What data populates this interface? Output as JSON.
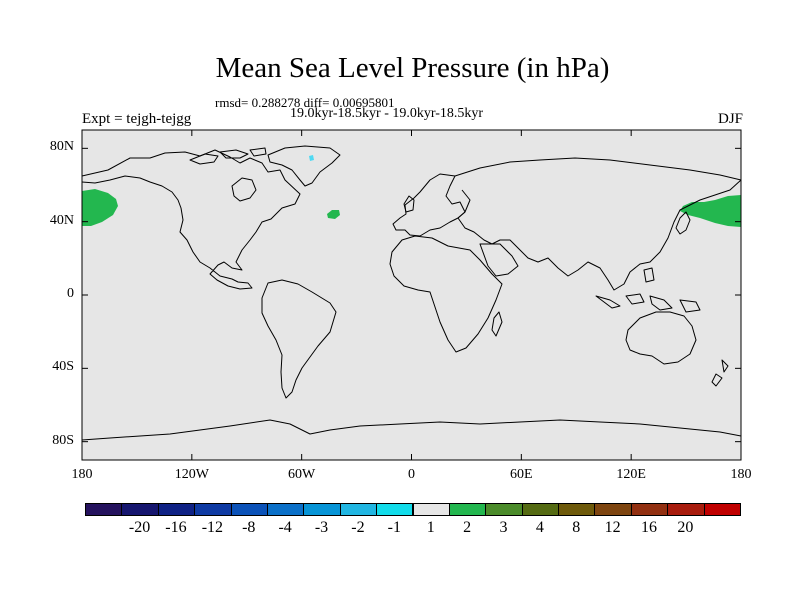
{
  "title": "Mean Sea Level Pressure (in hPa)",
  "stats": "rmsd= 0.288278 diff= 0.00695801",
  "period": "19.0kyr-18.5kyr - 19.0kyr-18.5kyr",
  "experiment": "Expt = tejgh-tejgg",
  "season": "DJF",
  "map": {
    "background_color": "#e6e6e6",
    "positive_color": "#23b74f",
    "negative_color": "#4fd9f2",
    "lat_labels": [
      {
        "lat": 80,
        "text": "80N"
      },
      {
        "lat": 40,
        "text": "40N"
      },
      {
        "lat": 0,
        "text": "0"
      },
      {
        "lat": -40,
        "text": "40S"
      },
      {
        "lat": -80,
        "text": "80S"
      }
    ],
    "lon_labels": [
      {
        "lon": -180,
        "text": "180"
      },
      {
        "lon": -120,
        "text": "120W"
      },
      {
        "lon": -60,
        "text": "60W"
      },
      {
        "lon": 0,
        "text": "0"
      },
      {
        "lon": 60,
        "text": "60E"
      },
      {
        "lon": 120,
        "text": "120E"
      },
      {
        "lon": 180,
        "text": "180"
      }
    ],
    "anomaly_regions": [
      {
        "name": "north-pacific-west-edge",
        "sign": "positive"
      },
      {
        "name": "north-atlantic-patch",
        "sign": "positive"
      },
      {
        "name": "north-pacific-east-edge",
        "sign": "positive"
      },
      {
        "name": "greenland-speck",
        "sign": "negative"
      }
    ]
  },
  "colorbar": {
    "labels": [
      "-20",
      "-16",
      "-12",
      "-8",
      "-4",
      "-3",
      "-2",
      "-1",
      "1",
      "2",
      "3",
      "4",
      "8",
      "12",
      "16",
      "20"
    ],
    "colors": [
      "#25125e",
      "#16166f",
      "#0f2285",
      "#0e3aa3",
      "#0b52b8",
      "#0b70c8",
      "#0794d6",
      "#21b6e2",
      "#12dcea",
      "#e6e6e6",
      "#23b74f",
      "#4b8b2a",
      "#556b13",
      "#6e5a0b",
      "#7e4510",
      "#923011",
      "#a81c0d",
      "#c00000"
    ]
  }
}
